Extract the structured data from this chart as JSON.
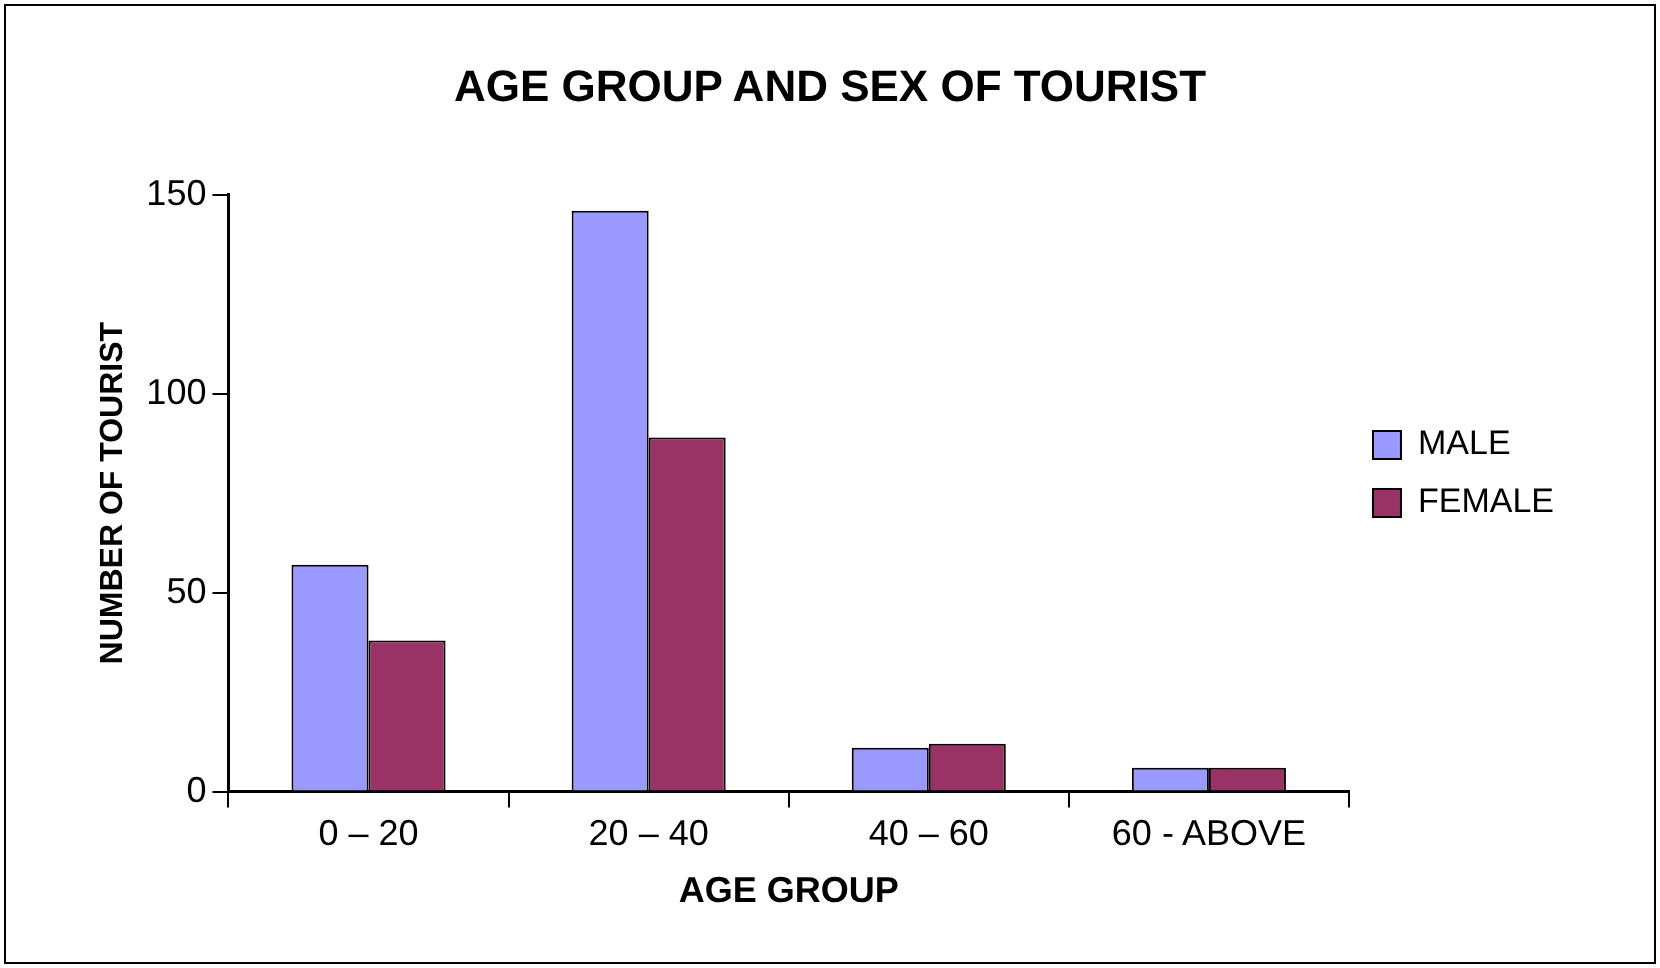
{
  "chart_data": {
    "type": "bar",
    "title": "AGE GROUP AND SEX OF TOURIST",
    "xlabel": "AGE GROUP",
    "ylabel": "NUMBER OF TOURIST",
    "categories": [
      "0 – 20",
      "20 – 40",
      "40 – 60",
      "60 - ABOVE"
    ],
    "series": [
      {
        "name": "MALE",
        "color": "#9999ff",
        "values": [
          57,
          146,
          11,
          6
        ]
      },
      {
        "name": "FEMALE",
        "color": "#993366",
        "values": [
          38,
          89,
          12,
          6
        ]
      }
    ],
    "ylim": [
      0,
      150
    ],
    "yticks": [
      0,
      50,
      100,
      150
    ],
    "grid": false,
    "legend": "right"
  }
}
